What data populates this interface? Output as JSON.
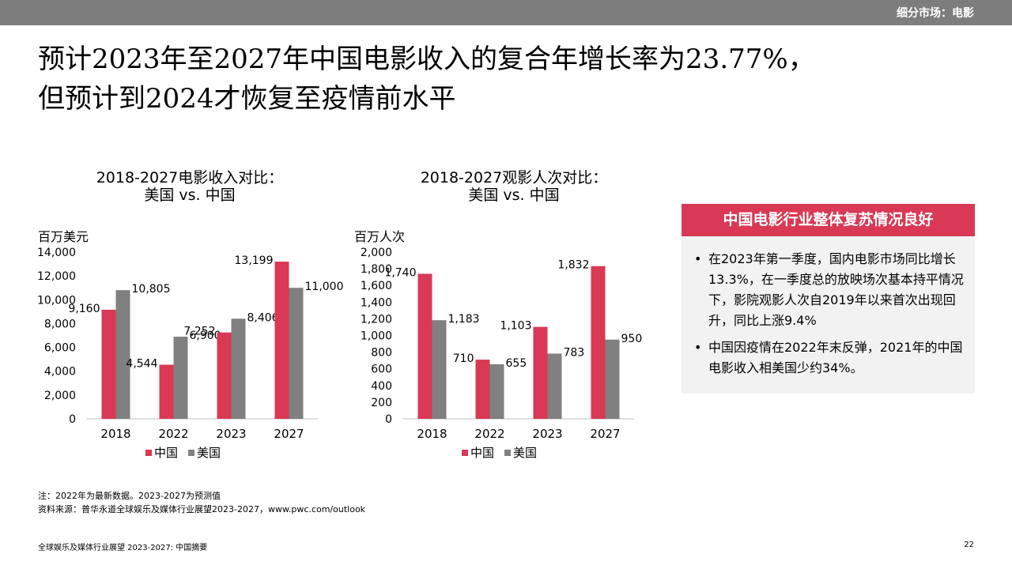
{
  "header": {
    "section_label": "细分市场：电影"
  },
  "title": {
    "line1": "预计2023年至2027年中国电影收入的复合年增长率为23.77%，",
    "line2": "但预计到2024才恢复至疫情前水平"
  },
  "colors": {
    "china": "#d93954",
    "usa": "#808080",
    "header_bar": "#7d7d7d",
    "card_bg": "#f2f2f2"
  },
  "chart_data": [
    {
      "type": "bar",
      "title": [
        "2018-2027电影收入对比：",
        "美国 vs. 中国"
      ],
      "ylabel": "百万美元",
      "categories": [
        "2018",
        "2022",
        "2023",
        "2027"
      ],
      "ylim": [
        0,
        14000
      ],
      "yticks": [
        0,
        2000,
        4000,
        6000,
        8000,
        10000,
        12000,
        14000
      ],
      "ytick_labels": [
        "0",
        "2,000",
        "4,000",
        "6,000",
        "8,000",
        "10,000",
        "12,000",
        "14,000"
      ],
      "series": [
        {
          "name": "中国",
          "values": [
            9160,
            4544,
            7252,
            13199
          ],
          "labels": [
            "9,160",
            "4,544",
            "7,252",
            "13,199"
          ]
        },
        {
          "name": "美国",
          "values": [
            10805,
            6900,
            8406,
            11000
          ],
          "labels": [
            "10,805",
            "6,900",
            "8,406",
            "11,000"
          ]
        }
      ],
      "legend_position": "bottom",
      "grid": false
    },
    {
      "type": "bar",
      "title": [
        "2018-2027观影人次对比：",
        "美国 vs. 中国"
      ],
      "ylabel": "百万人次",
      "categories": [
        "2018",
        "2022",
        "2023",
        "2027"
      ],
      "ylim": [
        0,
        2000
      ],
      "yticks": [
        0,
        200,
        400,
        600,
        800,
        1000,
        1200,
        1400,
        1600,
        1800,
        2000
      ],
      "ytick_labels": [
        "0",
        "200",
        "400",
        "600",
        "800",
        "1,000",
        "1,200",
        "1,400",
        "1,600",
        "1,800",
        "2,000"
      ],
      "series": [
        {
          "name": "中国",
          "values": [
            1740,
            710,
            1103,
            1832
          ],
          "labels": [
            "1,740",
            "710",
            "1,103",
            "1,832"
          ]
        },
        {
          "name": "美国",
          "values": [
            1183,
            655,
            783,
            950
          ],
          "labels": [
            "1,183",
            "655",
            "783",
            "950"
          ]
        }
      ],
      "legend_position": "bottom",
      "grid": false
    }
  ],
  "card": {
    "header": "中国电影行业整体复苏情况良好",
    "bullet_symbol": "•",
    "items": [
      "在2023年第一季度，国内电影市场同比增长13.3%，在一季度总的放映场次基本持平情况下，影院观影人次自2019年以来首次出现回升，同比上涨9.4%",
      "中国因疫情在2022年末反弹，2021年的中国电影收入相美国少约34%。"
    ]
  },
  "notes": {
    "note": "注：2022年为最新数据。2023-2027为预测值",
    "source": "资料来源：普华永道全球娱乐及媒体行业展望2023-2027，www.pwc.com/outlook"
  },
  "footer": {
    "left": "全球娱乐及媒体行业展望 2023-2027: 中国摘要",
    "page_number": "22"
  }
}
